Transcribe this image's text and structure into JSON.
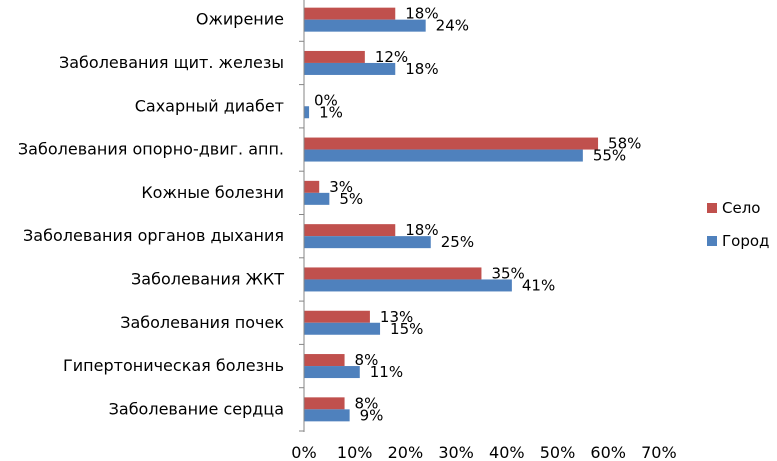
{
  "chart_data": {
    "type": "bar",
    "orientation": "horizontal",
    "categories": [
      "Ожирение",
      "Заболевания щит. железы",
      "Сахарный диабет",
      "Заболевания опорно-двиг. апп.",
      "Кожные болезни",
      "Заболевания органов дыхания",
      "Заболевания ЖКТ",
      "Заболевания почек",
      "Гипертоническая болезнь",
      "Заболевание сердца"
    ],
    "series": [
      {
        "name": "Село",
        "color": "#C0504D",
        "values": [
          18,
          12,
          0,
          58,
          3,
          18,
          35,
          13,
          8,
          8
        ]
      },
      {
        "name": "Город",
        "color": "#4F81BD",
        "values": [
          24,
          18,
          1,
          55,
          5,
          25,
          41,
          15,
          11,
          9
        ]
      }
    ],
    "value_suffix": "%",
    "xlim": [
      0,
      70
    ],
    "xticks": [
      "0%",
      "10%",
      "20%",
      "30%",
      "40%",
      "50%",
      "60%",
      "70%"
    ],
    "grid": false,
    "legend_position": "right"
  }
}
